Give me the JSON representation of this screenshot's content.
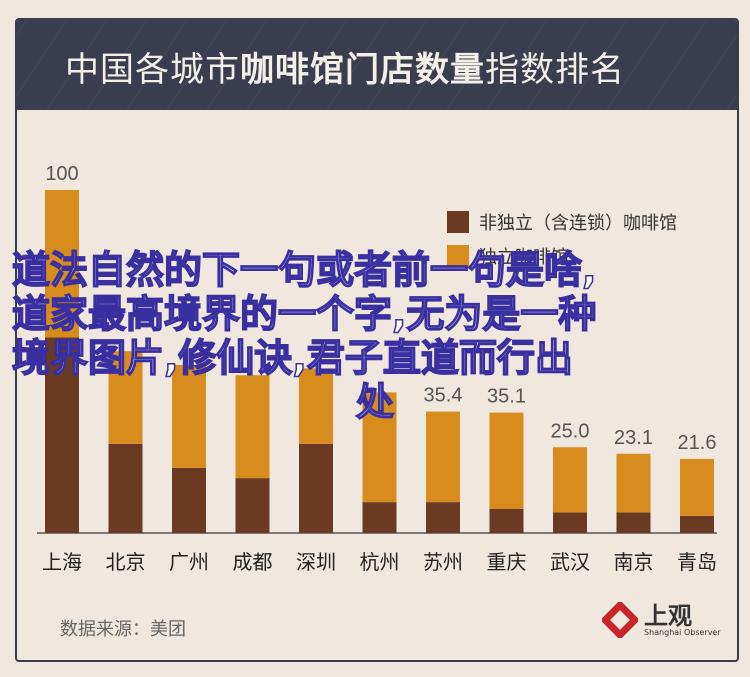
{
  "header": {
    "title_part1": "中国各城市",
    "title_part2": "咖啡馆门店数量",
    "title_part3": "指数排名"
  },
  "source": "数据来源：美团",
  "logo": {
    "name": "上观",
    "sub": "Shanghai Observer"
  },
  "overlay": {
    "lines": [
      "道法自然的下一句或者前一句是啥,",
      "道家最高境界的一个字,无为是一种",
      "境界图片,修仙诀,君子直道而行出",
      "处"
    ]
  },
  "colors": {
    "dark_series": "#6b3a22",
    "light_series": "#d98c1e",
    "header_bg": "#3a3d4e",
    "background": "#f0e7de"
  },
  "chart_data": {
    "type": "bar",
    "stacked": true,
    "categories": [
      "上海",
      "北京",
      "广州",
      "成都",
      "深圳",
      "杭州",
      "苏州",
      "重庆",
      "武汉",
      "南京",
      "青岛"
    ],
    "series": [
      {
        "name": "非独立（含连锁）咖啡馆",
        "values": [
          57,
          26,
          19,
          16,
          26,
          9,
          9,
          7,
          6,
          6,
          5
        ]
      },
      {
        "name": "独立咖啡馆",
        "values": [
          43,
          27,
          30,
          30,
          22,
          32,
          26.4,
          28.1,
          19,
          17.1,
          16.6
        ]
      }
    ],
    "totals_labels": [
      "100",
      "",
      "",
      "",
      "",
      "",
      "35.4",
      "35.1",
      "25.0",
      "23.1",
      "21.6"
    ],
    "ylim": [
      0,
      100
    ],
    "legend_position": "top-right",
    "grid": false
  }
}
